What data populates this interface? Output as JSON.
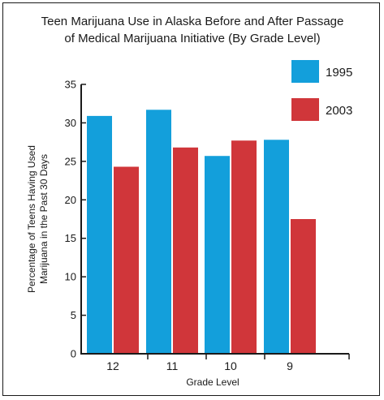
{
  "chart_data": {
    "type": "bar",
    "title": "Teen Marijuana Use in Alaska Before and After Passage of Medical Marijuana Initiative (By Grade Level)",
    "title_lines": [
      "Teen Marijuana Use in Alaska Before and After Passage",
      "of Medical Marijuana Initiative (By Grade Level)"
    ],
    "xlabel": "Grade Level",
    "ylabel": "Percentage of Teens Having Used Marijuana in the Past 30 Days",
    "ylabel_lines": [
      "Percentage of Teens Having Used",
      "Marijuana in the Past 30 Days"
    ],
    "categories": [
      "12",
      "11",
      "10",
      "9"
    ],
    "ylim": [
      0,
      35
    ],
    "yticks": [
      "0",
      "5",
      "10",
      "15",
      "20",
      "25",
      "30",
      "35"
    ],
    "series": [
      {
        "name": "1995",
        "color": "#139fdb",
        "values": [
          30.9,
          31.7,
          25.7,
          27.8
        ]
      },
      {
        "name": "2003",
        "color": "#d0363a",
        "values": [
          24.3,
          26.8,
          27.7,
          17.5
        ]
      }
    ],
    "legend_position": "top-right",
    "grid": false
  }
}
